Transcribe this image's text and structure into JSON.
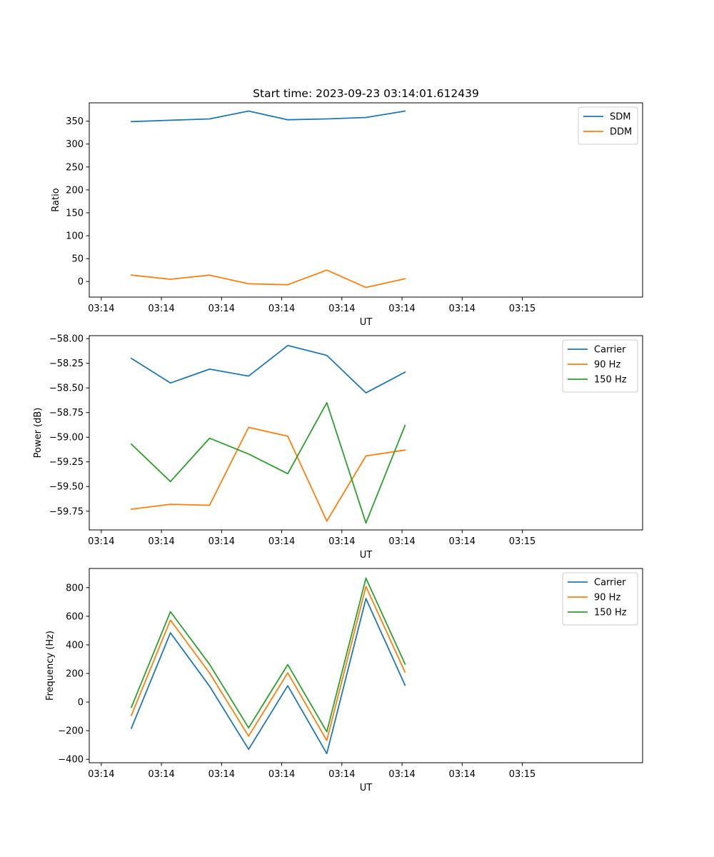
{
  "title": "Start time: 2023-09-23 03:14:01.612439",
  "colors": {
    "blue": "#1f77b4",
    "orange": "#ff7f0e",
    "green": "#2ca02c"
  },
  "chart_data": [
    {
      "type": "line",
      "xlabel": "UT",
      "ylabel": "Ratio",
      "x": [
        1,
        2,
        3,
        4,
        5,
        6,
        7,
        8
      ],
      "xlim": [
        0.8,
        10
      ],
      "x_ticks": [
        {
          "value": 1,
          "label": "03:14"
        },
        {
          "value": 2,
          "label": "03:14"
        },
        {
          "value": 3,
          "label": "03:14"
        },
        {
          "value": 4,
          "label": "03:14"
        },
        {
          "value": 5,
          "label": "03:14"
        },
        {
          "value": 6,
          "label": "03:14"
        },
        {
          "value": 7,
          "label": "03:14"
        },
        {
          "value": 8,
          "label": "03:15"
        }
      ],
      "ylim": [
        -34,
        390
      ],
      "y_ticks": [
        {
          "value": 0,
          "label": "0"
        },
        {
          "value": 50,
          "label": "50"
        },
        {
          "value": 100,
          "label": "100"
        },
        {
          "value": 150,
          "label": "150"
        },
        {
          "value": 200,
          "label": "200"
        },
        {
          "value": 250,
          "label": "250"
        },
        {
          "value": 300,
          "label": "300"
        },
        {
          "value": 350,
          "label": "350"
        }
      ],
      "legend_position": "top-right",
      "series": [
        {
          "name": "SDM",
          "color": "#1f77b4",
          "x": [
            1.5,
            2.15,
            2.8,
            3.45,
            4.1,
            4.75,
            5.4,
            6.05
          ],
          "values": [
            349,
            352,
            355,
            372,
            353,
            355,
            358,
            372
          ]
        },
        {
          "name": "DDM",
          "color": "#ff7f0e",
          "x": [
            1.5,
            2.15,
            2.8,
            3.45,
            4.1,
            4.75,
            5.4,
            6.05
          ],
          "values": [
            14,
            5,
            14,
            -5,
            -7,
            25,
            -13,
            6
          ]
        }
      ]
    },
    {
      "type": "line",
      "xlabel": "UT",
      "ylabel": "Power (dB)",
      "xlim": [
        0.8,
        10
      ],
      "x_ticks": [
        {
          "value": 1,
          "label": "03:14"
        },
        {
          "value": 2,
          "label": "03:14"
        },
        {
          "value": 3,
          "label": "03:14"
        },
        {
          "value": 4,
          "label": "03:14"
        },
        {
          "value": 5,
          "label": "03:14"
        },
        {
          "value": 6,
          "label": "03:14"
        },
        {
          "value": 7,
          "label": "03:14"
        },
        {
          "value": 8,
          "label": "03:15"
        }
      ],
      "ylim": [
        -59.94,
        -57.97
      ],
      "y_ticks": [
        {
          "value": -58.0,
          "label": "−58.00"
        },
        {
          "value": -58.25,
          "label": "−58.25"
        },
        {
          "value": -58.5,
          "label": "−58.50"
        },
        {
          "value": -58.75,
          "label": "−58.75"
        },
        {
          "value": -59.0,
          "label": "−59.00"
        },
        {
          "value": -59.25,
          "label": "−59.25"
        },
        {
          "value": -59.5,
          "label": "−59.50"
        },
        {
          "value": -59.75,
          "label": "−59.75"
        }
      ],
      "legend_position": "top-right",
      "series": [
        {
          "name": "Carrier",
          "color": "#1f77b4",
          "x": [
            1.5,
            2.15,
            2.8,
            3.45,
            4.1,
            4.75,
            5.4,
            6.05
          ],
          "values": [
            -58.2,
            -58.45,
            -58.31,
            -58.38,
            -58.07,
            -58.17,
            -58.55,
            -58.34
          ]
        },
        {
          "name": "90 Hz",
          "color": "#ff7f0e",
          "x": [
            1.5,
            2.15,
            2.8,
            3.45,
            4.1,
            4.75,
            5.4,
            6.05
          ],
          "values": [
            -59.73,
            -59.68,
            -59.69,
            -58.9,
            -58.99,
            -59.85,
            -59.19,
            -59.13
          ]
        },
        {
          "name": "150 Hz",
          "color": "#2ca02c",
          "x": [
            1.5,
            2.15,
            2.8,
            3.45,
            4.1,
            4.75,
            5.4,
            6.05
          ],
          "values": [
            -59.07,
            -59.45,
            -59.01,
            -59.17,
            -59.37,
            -58.65,
            -59.87,
            -58.88
          ]
        }
      ]
    },
    {
      "type": "line",
      "xlabel": "UT",
      "ylabel": "Frequency (Hz)",
      "xlim": [
        0.8,
        10
      ],
      "x_ticks": [
        {
          "value": 1,
          "label": "03:14"
        },
        {
          "value": 2,
          "label": "03:14"
        },
        {
          "value": 3,
          "label": "03:14"
        },
        {
          "value": 4,
          "label": "03:14"
        },
        {
          "value": 5,
          "label": "03:14"
        },
        {
          "value": 6,
          "label": "03:14"
        },
        {
          "value": 7,
          "label": "03:14"
        },
        {
          "value": 8,
          "label": "03:15"
        }
      ],
      "ylim": [
        -424,
        934
      ],
      "y_ticks": [
        {
          "value": -400,
          "label": "−400"
        },
        {
          "value": -200,
          "label": "−200"
        },
        {
          "value": 0,
          "label": "0"
        },
        {
          "value": 200,
          "label": "200"
        },
        {
          "value": 400,
          "label": "400"
        },
        {
          "value": 600,
          "label": "600"
        },
        {
          "value": 800,
          "label": "800"
        }
      ],
      "legend_position": "top-right",
      "series": [
        {
          "name": "Carrier",
          "color": "#1f77b4",
          "x": [
            1.5,
            2.15,
            2.8,
            3.45,
            4.1,
            4.75,
            5.4,
            6.05
          ],
          "values": [
            -183,
            484,
            111,
            -330,
            114,
            -360,
            724,
            117
          ]
        },
        {
          "name": "90 Hz",
          "color": "#ff7f0e",
          "x": [
            1.5,
            2.15,
            2.8,
            3.45,
            4.1,
            4.75,
            5.4,
            6.05
          ],
          "values": [
            -93,
            573,
            203,
            -238,
            204,
            -268,
            808,
            209
          ]
        },
        {
          "name": "150 Hz",
          "color": "#2ca02c",
          "x": [
            1.5,
            2.15,
            2.8,
            3.45,
            4.1,
            4.75,
            5.4,
            6.05
          ],
          "values": [
            -36,
            632,
            264,
            -180,
            262,
            -208,
            866,
            266
          ]
        }
      ]
    }
  ]
}
